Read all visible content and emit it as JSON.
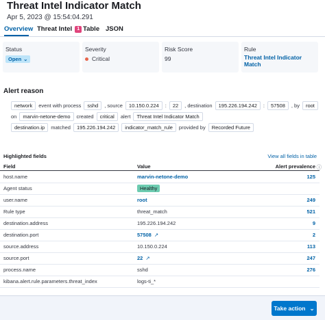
{
  "header": {
    "title": "Threat Intel Indicator Match",
    "timestamp": "Apr 5, 2023 @ 15:54:04.291"
  },
  "tabs": [
    {
      "label": "Overview",
      "active": true
    },
    {
      "label": "Threat Intel",
      "badge": "1"
    },
    {
      "label": "Table"
    },
    {
      "label": "JSON"
    }
  ],
  "summary": [
    {
      "label": "Status",
      "value": "Open",
      "style": "badge"
    },
    {
      "label": "Severity",
      "value": "Critical",
      "style": "dot"
    },
    {
      "label": "Risk Score",
      "value": "99",
      "style": "plain"
    },
    {
      "label": "Rule",
      "value": "Threat Intel Indicator Match",
      "style": "link"
    }
  ],
  "alert_reason": {
    "title": "Alert reason",
    "lines": [
      [
        {
          "text": "network",
          "badge": true
        },
        {
          "text": "event with process"
        },
        {
          "text": "sshd",
          "badge": true
        },
        {
          "text": ", source"
        },
        {
          "text": "10.150.0.224",
          "badge": true
        },
        {
          "text": ":"
        },
        {
          "text": "22",
          "badge": true
        },
        {
          "text": ", destination"
        },
        {
          "text": "195.226.194.242",
          "badge": true
        },
        {
          "text": ":"
        },
        {
          "text": "57508",
          "badge": true
        },
        {
          "text": ", by"
        },
        {
          "text": "root",
          "badge": true
        }
      ],
      [
        {
          "text": "on"
        },
        {
          "text": "marvin-netone-demo",
          "badge": true
        },
        {
          "text": "created"
        },
        {
          "text": "critical",
          "badge": true
        },
        {
          "text": "alert"
        },
        {
          "text": "Threat Intel Indicator Match",
          "badge": true
        }
      ],
      [
        {
          "text": "destination.ip",
          "badge": true
        },
        {
          "text": "matched"
        },
        {
          "text": "195.226.194.242",
          "badge": true
        },
        {
          "text": "indicator_match_rule",
          "badge": true
        },
        {
          "text": "provided by"
        },
        {
          "text": "Recorded Future",
          "badge": true
        }
      ]
    ]
  },
  "highlighted_fields": {
    "title": "Highlighted fields",
    "view_all": "View all fields in table",
    "columns": [
      "Field",
      "Value",
      "Alert prevalence"
    ],
    "rows": [
      {
        "field": "host.name",
        "value": "marvin-netone-demo",
        "style": "link",
        "prevalence": "125"
      },
      {
        "field": "Agent status",
        "value": "Healthy",
        "style": "badge"
      },
      {
        "field": "user.name",
        "value": "root",
        "style": "link",
        "prevalence": "249"
      },
      {
        "field": "Rule type",
        "value": "threat_match",
        "style": "plain",
        "prevalence": "521"
      },
      {
        "field": "destination.address",
        "value": "195.226.194.242",
        "style": "plain",
        "prevalence": "9"
      },
      {
        "field": "destination.port",
        "value": "57508",
        "style": "external",
        "prevalence": "2"
      },
      {
        "field": "source.address",
        "value": "10.150.0.224",
        "style": "plain",
        "prevalence": "113"
      },
      {
        "field": "source.port",
        "value": "22",
        "style": "external",
        "prevalence": "247"
      },
      {
        "field": "process.name",
        "value": "sshd",
        "style": "plain",
        "prevalence": "276"
      },
      {
        "field": "kibana.alert.rule.parameters.threat_index",
        "value": "logs-ti_*",
        "style": "plain"
      }
    ]
  },
  "footer": {
    "button": "Take action"
  }
}
